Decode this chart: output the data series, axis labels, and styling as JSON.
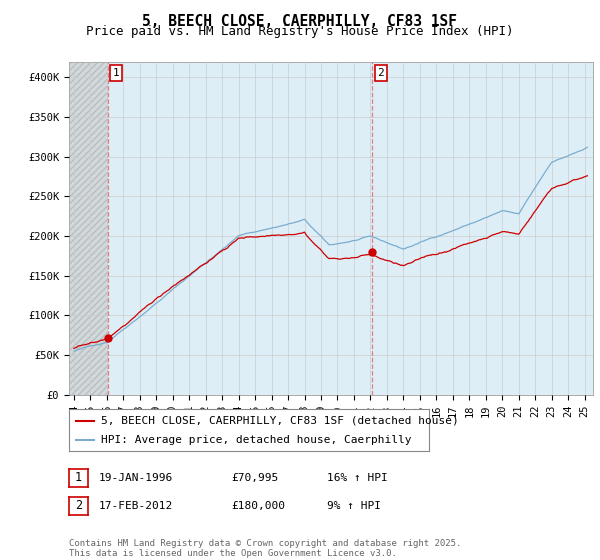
{
  "title": "5, BEECH CLOSE, CAERPHILLY, CF83 1SF",
  "subtitle": "Price paid vs. HM Land Registry's House Price Index (HPI)",
  "ylim": [
    0,
    420000
  ],
  "yticks": [
    0,
    50000,
    100000,
    150000,
    200000,
    250000,
    300000,
    350000,
    400000
  ],
  "ytick_labels": [
    "£0",
    "£50K",
    "£100K",
    "£150K",
    "£200K",
    "£250K",
    "£300K",
    "£350K",
    "£400K"
  ],
  "sale1_x": 1996.05,
  "sale1_price": 70995,
  "sale2_x": 2012.12,
  "sale2_price": 180000,
  "legend_line1": "5, BEECH CLOSE, CAERPHILLY, CF83 1SF (detached house)",
  "legend_line2": "HPI: Average price, detached house, Caerphilly",
  "table_row1": [
    "1",
    "19-JAN-1996",
    "£70,995",
    "16% ↑ HPI"
  ],
  "table_row2": [
    "2",
    "17-FEB-2012",
    "£180,000",
    "9% ↑ HPI"
  ],
  "footer": "Contains HM Land Registry data © Crown copyright and database right 2025.\nThis data is licensed under the Open Government Licence v3.0.",
  "line_color_sale": "#cc0000",
  "line_color_hpi": "#7aadcf",
  "grid_color": "#cccccc",
  "background_color": "#ffffff",
  "plot_bg_color": "#ddeef7",
  "vline_color": "#dd6666",
  "title_fontsize": 10.5,
  "subtitle_fontsize": 9,
  "tick_fontsize": 7.5,
  "legend_fontsize": 8,
  "footer_fontsize": 6.5,
  "xmin": 1993.7,
  "xmax": 2025.5,
  "xticks": [
    1994,
    1995,
    1996,
    1997,
    1998,
    1999,
    2000,
    2001,
    2002,
    2003,
    2004,
    2005,
    2006,
    2007,
    2008,
    2009,
    2010,
    2011,
    2012,
    2013,
    2014,
    2015,
    2016,
    2017,
    2018,
    2019,
    2020,
    2021,
    2022,
    2023,
    2024,
    2025
  ]
}
